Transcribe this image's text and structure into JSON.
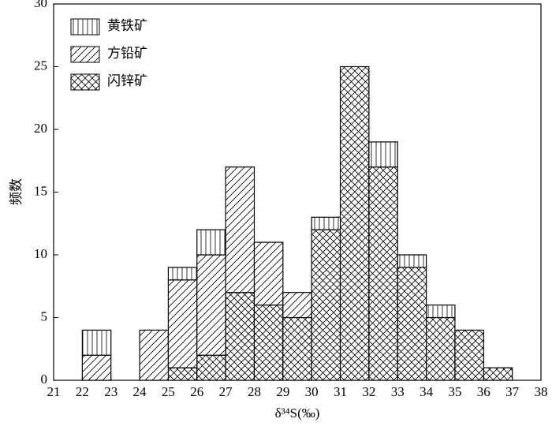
{
  "chart_data": {
    "type": "stacked_histogram",
    "xlabel": "δ³⁴S(‰)",
    "ylabel": "频数",
    "bins": [
      21,
      22,
      23,
      24,
      25,
      26,
      27,
      28,
      29,
      30,
      31,
      32,
      33,
      34,
      35,
      36,
      37,
      38
    ],
    "series": [
      {
        "name": "黄铁矿",
        "pattern": "vertical",
        "color": "#000000",
        "values": [
          0,
          2,
          0,
          0,
          1,
          2,
          0,
          0,
          0,
          1,
          0,
          2,
          1,
          1,
          0,
          0,
          0
        ]
      },
      {
        "name": "方铅矿",
        "pattern": "diagonal",
        "color": "#000000",
        "values": [
          0,
          2,
          0,
          4,
          7,
          8,
          10,
          5,
          2,
          0,
          0,
          0,
          0,
          0,
          0,
          0,
          0
        ]
      },
      {
        "name": "闪锌矿",
        "pattern": "crosshatch",
        "color": "#000000",
        "values": [
          0,
          0,
          0,
          0,
          1,
          2,
          7,
          6,
          5,
          12,
          25,
          17,
          9,
          5,
          4,
          1,
          0
        ]
      }
    ],
    "xlim": [
      21,
      38
    ],
    "xticks": [
      21,
      22,
      23,
      24,
      25,
      26,
      27,
      28,
      29,
      30,
      31,
      32,
      33,
      34,
      35,
      36,
      37,
      38
    ],
    "ylim": [
      0,
      30
    ],
    "yticks": [
      0,
      5,
      10,
      15,
      20,
      25,
      30
    ],
    "legend": "upper-left"
  }
}
